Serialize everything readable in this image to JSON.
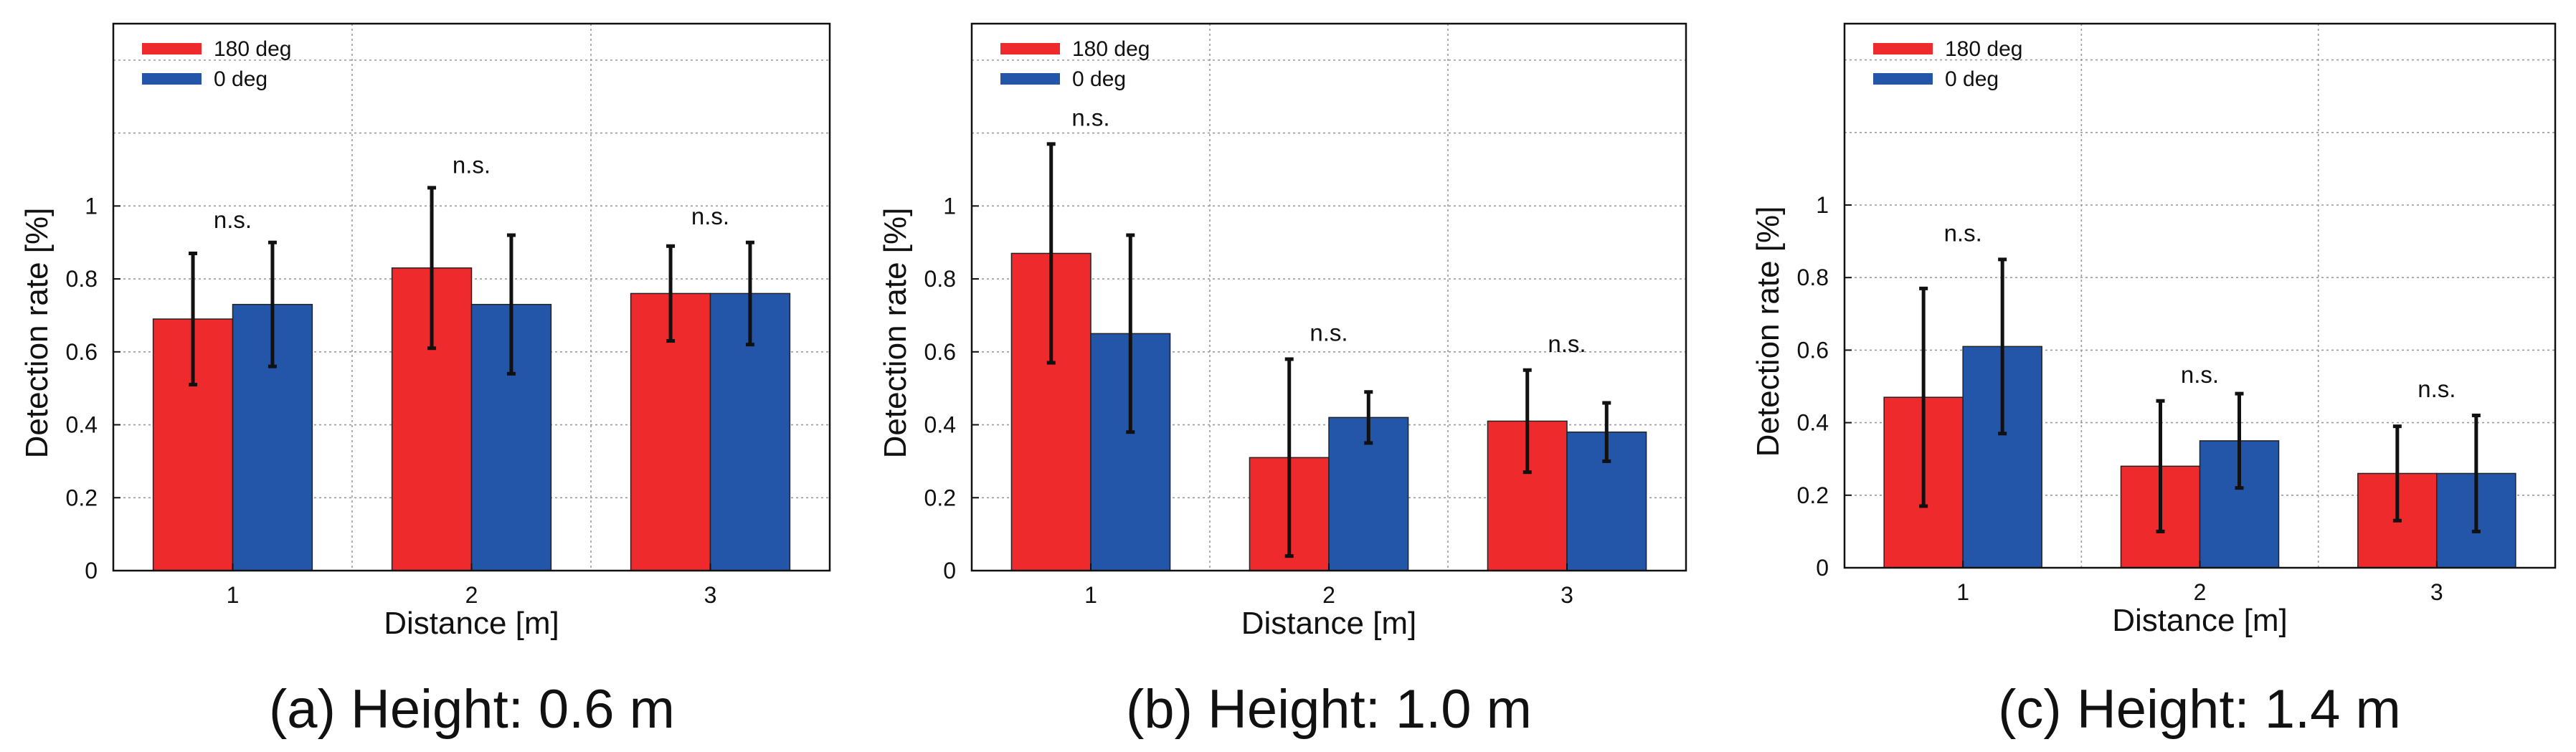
{
  "chart_data": [
    {
      "type": "bar",
      "caption": "(a) Height: 0.6 m",
      "xlabel": "Distance [m]",
      "ylabel": "Detection rate [%]",
      "categories": [
        "1",
        "2",
        "3"
      ],
      "ylim": [
        0,
        1.5
      ],
      "yticks": [
        "0",
        "0.2",
        "0.4",
        "0.6",
        "0.8",
        "1"
      ],
      "grid": true,
      "legend_position": "top-left",
      "series": [
        {
          "name": "180 deg",
          "color": "#ee2a2c",
          "values": [
            0.69,
            0.83,
            0.76
          ],
          "error": [
            0.18,
            0.22,
            0.13
          ]
        },
        {
          "name": "0 deg",
          "color": "#2356a8",
          "values": [
            0.73,
            0.73,
            0.76
          ],
          "error": [
            0.17,
            0.19,
            0.14
          ]
        }
      ],
      "annotations": [
        {
          "text": "n.s.",
          "category": "1",
          "y": 0.94
        },
        {
          "text": "n.s.",
          "category": "2",
          "y": 1.09
        },
        {
          "text": "n.s.",
          "category": "3",
          "y": 0.95
        }
      ]
    },
    {
      "type": "bar",
      "caption": "(b) Height: 1.0 m",
      "xlabel": "Distance [m]",
      "ylabel": "Detection rate [%]",
      "categories": [
        "1",
        "2",
        "3"
      ],
      "ylim": [
        0,
        1.5
      ],
      "yticks": [
        "0",
        "0.2",
        "0.4",
        "0.6",
        "0.8",
        "1"
      ],
      "grid": true,
      "legend_position": "top-left",
      "series": [
        {
          "name": "180 deg",
          "color": "#ee2a2c",
          "values": [
            0.87,
            0.31,
            0.41
          ],
          "error": [
            0.3,
            0.27,
            0.14
          ]
        },
        {
          "name": "0 deg",
          "color": "#2356a8",
          "values": [
            0.65,
            0.42,
            0.38
          ],
          "error": [
            0.27,
            0.07,
            0.08
          ]
        }
      ],
      "annotations": [
        {
          "text": "n.s.",
          "category": "1",
          "y": 1.22
        },
        {
          "text": "n.s.",
          "category": "2",
          "y": 0.63
        },
        {
          "text": "n.s.",
          "category": "3",
          "y": 0.6
        }
      ]
    },
    {
      "type": "bar",
      "caption": "(c) Height: 1.4 m",
      "xlabel": "Distance [m]",
      "ylabel": "Detection rate [%]",
      "categories": [
        "1",
        "2",
        "3"
      ],
      "ylim": [
        0,
        1.5
      ],
      "yticks": [
        "0",
        "0.2",
        "0.4",
        "0.6",
        "0.8",
        "1"
      ],
      "grid": true,
      "legend_position": "top-left",
      "series": [
        {
          "name": "180 deg",
          "color": "#ee2a2c",
          "values": [
            0.47,
            0.28,
            0.26
          ],
          "error": [
            0.3,
            0.18,
            0.13
          ]
        },
        {
          "name": "0 deg",
          "color": "#2356a8",
          "values": [
            0.61,
            0.35,
            0.26
          ],
          "error": [
            0.24,
            0.13,
            0.16
          ]
        }
      ],
      "annotations": [
        {
          "text": "n.s.",
          "category": "1",
          "y": 0.9
        },
        {
          "text": "n.s.",
          "category": "2",
          "y": 0.51
        },
        {
          "text": "n.s.",
          "category": "3",
          "y": 0.47
        }
      ]
    }
  ]
}
